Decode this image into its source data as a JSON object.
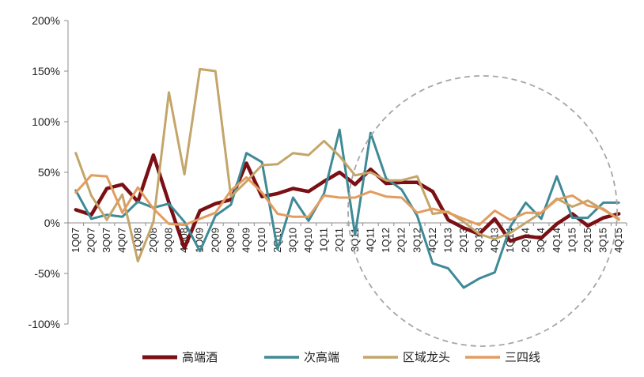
{
  "chart_data": {
    "type": "line",
    "title": "",
    "xlabel": "",
    "ylabel": "",
    "ylim": [
      -100,
      200
    ],
    "yticks": [
      -100,
      -50,
      0,
      50,
      100,
      150,
      200
    ],
    "ytick_labels": [
      "-100%",
      "-50%",
      "0%",
      "50%",
      "100%",
      "150%",
      "200%"
    ],
    "categories": [
      "1Q07",
      "2Q07",
      "3Q07",
      "4Q07",
      "1Q08",
      "2Q08",
      "3Q08",
      "4Q08",
      "1Q09",
      "2Q09",
      "3Q09",
      "4Q09",
      "1Q10",
      "2Q10",
      "3Q10",
      "4Q10",
      "1Q11",
      "2Q11",
      "3Q11",
      "4Q11",
      "1Q12",
      "2Q12",
      "3Q12",
      "4Q12",
      "1Q13",
      "2Q13",
      "3Q13",
      "4Q13",
      "1Q14",
      "2Q14",
      "3Q14",
      "4Q14",
      "1Q15",
      "2Q15",
      "3Q15",
      "4Q15"
    ],
    "grid": false,
    "legend_position": "bottom",
    "annotation": "dashed-circle",
    "series": [
      {
        "name": "高端酒",
        "color": "#7a0f14",
        "values": [
          13,
          8,
          34,
          38,
          21,
          67,
          20,
          -25,
          12,
          19,
          23,
          59,
          26,
          29,
          34,
          31,
          41,
          50,
          38,
          53,
          39,
          40,
          40,
          31,
          3,
          -5,
          -11,
          4,
          -18,
          -13,
          -15,
          -1,
          9,
          -3,
          5,
          9
        ]
      },
      {
        "name": "次高端",
        "color": "#3e8a96",
        "values": [
          32,
          4,
          8,
          6,
          21,
          15,
          19,
          1,
          -28,
          7,
          18,
          69,
          60,
          -26,
          25,
          2,
          29,
          92,
          -12,
          89,
          44,
          33,
          7,
          -40,
          -45,
          -64,
          -55,
          -49,
          -4,
          20,
          4,
          46,
          5,
          5,
          20,
          20
        ]
      },
      {
        "name": "区域龙头",
        "color": "#c4a56a",
        "values": [
          69,
          27,
          3,
          28,
          -38,
          1,
          129,
          48,
          152,
          150,
          26,
          41,
          57,
          58,
          69,
          67,
          81,
          66,
          47,
          50,
          42,
          42,
          46,
          9,
          11,
          1,
          -11,
          -16,
          -10,
          0,
          10,
          24,
          16,
          22,
          13,
          4
        ]
      },
      {
        "name": "三四线",
        "color": "#e39c5f",
        "values": [
          30,
          47,
          46,
          10,
          35,
          14,
          -1,
          -2,
          4,
          10,
          32,
          45,
          30,
          9,
          6,
          6,
          27,
          25,
          25,
          31,
          26,
          25,
          10,
          14,
          10,
          4,
          -2,
          12,
          3,
          10,
          10,
          23,
          27,
          17,
          14,
          3
        ]
      }
    ]
  }
}
